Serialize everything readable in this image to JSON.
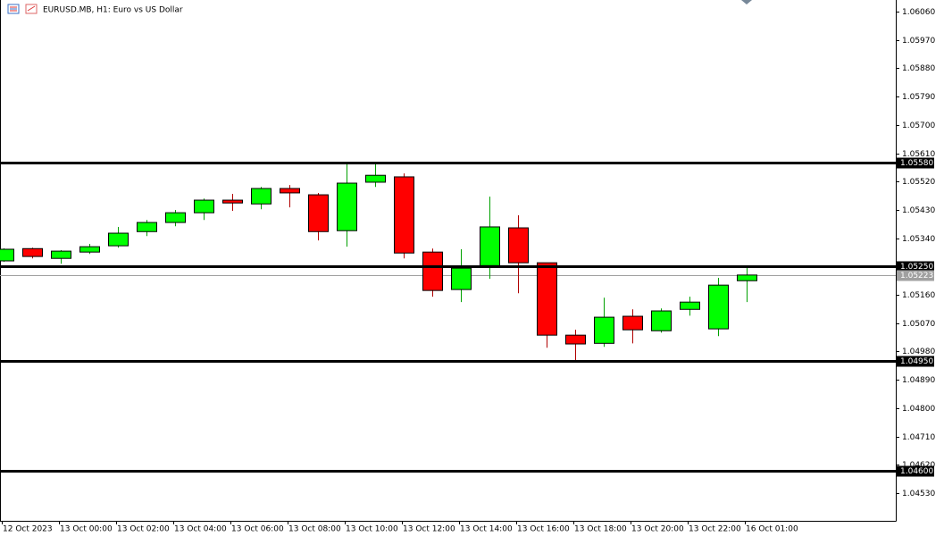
{
  "chart_data": {
    "type": "candlestick",
    "title": "EURUSD.MB, H1:  Euro vs US Dollar",
    "categories": [
      "12 Oct 2023",
      null,
      "13 Oct 00:00",
      null,
      "13 Oct 02:00",
      null,
      "13 Oct 04:00",
      null,
      "13 Oct 06:00",
      null,
      "13 Oct 08:00",
      null,
      "13 Oct 10:00",
      null,
      "13 Oct 12:00",
      null,
      "13 Oct 14:00",
      null,
      "13 Oct 16:00",
      null,
      "13 Oct 18:00",
      null,
      "13 Oct 20:00",
      null,
      "13 Oct 22:00",
      null,
      "16 Oct 01:00"
    ],
    "open": [
      1.05268,
      1.05307,
      1.05276,
      1.05296,
      1.05316,
      1.05361,
      1.0539,
      1.05421,
      1.05461,
      1.05449,
      1.05498,
      1.05478,
      1.05364,
      1.05518,
      1.05535,
      1.05296,
      1.05177,
      1.05253,
      1.05373,
      1.05262,
      1.05032,
      1.05006,
      1.05092,
      1.05046,
      1.05114,
      1.05052,
      1.05205
    ],
    "high": [
      1.05308,
      1.0531,
      1.05302,
      1.05322,
      1.05376,
      1.05398,
      1.0543,
      1.05466,
      1.05481,
      1.05503,
      1.05509,
      1.05484,
      1.05577,
      1.05577,
      1.05546,
      1.05307,
      1.05305,
      1.05472,
      1.05413,
      1.05262,
      1.05049,
      1.05151,
      1.05114,
      1.05117,
      1.05154,
      1.05214,
      1.05248
    ],
    "low": [
      1.05265,
      1.05276,
      1.05259,
      1.0529,
      1.0531,
      1.05347,
      1.05378,
      1.05398,
      1.05427,
      1.05432,
      1.05438,
      1.05333,
      1.05313,
      1.05503,
      1.05276,
      1.05154,
      1.05137,
      1.05211,
      1.05165,
      1.04992,
      1.04952,
      1.04995,
      1.05006,
      1.0504,
      1.05094,
      1.05029,
      1.05137
    ],
    "close": [
      1.05305,
      1.05282,
      1.05299,
      1.05313,
      1.05356,
      1.0539,
      1.05421,
      1.05461,
      1.05452,
      1.05498,
      1.05484,
      1.05361,
      1.05515,
      1.0554,
      1.05293,
      1.05174,
      1.05245,
      1.05376,
      1.05262,
      1.05032,
      1.05004,
      1.05089,
      1.05049,
      1.05109,
      1.05137,
      1.05191,
      1.05223
    ],
    "up_color": "#00ff00",
    "down_color": "#ff0000",
    "ylim": [
      1.04442,
      1.06097
    ],
    "yticks": [
      {
        "value": 1.0606,
        "label": "1.06060"
      },
      {
        "value": 1.0597,
        "label": "1.05970"
      },
      {
        "value": 1.0588,
        "label": "1.05880"
      },
      {
        "value": 1.0579,
        "label": "1.05790"
      },
      {
        "value": 1.057,
        "label": "1.05700"
      },
      {
        "value": 1.0561,
        "label": "1.05610"
      },
      {
        "value": 1.0552,
        "label": "1.05520"
      },
      {
        "value": 1.0543,
        "label": "1.05430"
      },
      {
        "value": 1.0534,
        "label": "1.05340"
      },
      {
        "value": 1.0516,
        "label": "1.05160"
      },
      {
        "value": 1.0507,
        "label": "1.05070"
      },
      {
        "value": 1.0498,
        "label": "1.04980"
      },
      {
        "value": 1.0489,
        "label": "1.04890"
      },
      {
        "value": 1.048,
        "label": "1.04800"
      },
      {
        "value": 1.0471,
        "label": "1.04710"
      },
      {
        "value": 1.0462,
        "label": "1.04620"
      },
      {
        "value": 1.0453,
        "label": "1.04530"
      }
    ],
    "levels": [
      {
        "value": 1.0558,
        "label": "1.05580"
      },
      {
        "value": 1.0525,
        "label": "1.05250"
      },
      {
        "value": 1.0495,
        "label": "1.04950"
      },
      {
        "value": 1.046,
        "label": "1.04600"
      }
    ],
    "current_price": {
      "value": 1.05223,
      "label": "1.05223"
    }
  }
}
